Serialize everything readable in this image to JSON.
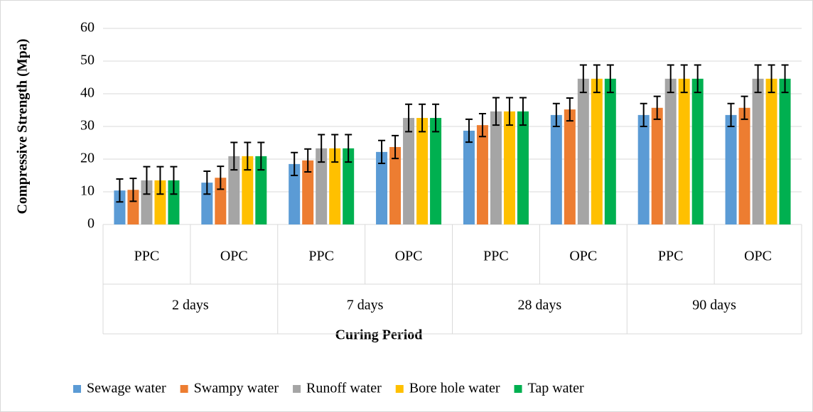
{
  "chart_data": {
    "type": "bar",
    "y_label": "Compressive Strength (Mpa)",
    "x_label": "Curing Period",
    "groups": [
      "2 days",
      "7 days",
      "28 days",
      "90 days"
    ],
    "categories": [
      "PPC",
      "OPC",
      "PPC",
      "OPC",
      "PPC",
      "OPC",
      "PPC",
      "OPC"
    ],
    "series": [
      {
        "name": "Sewage water",
        "color": "#5b9bd5",
        "values": [
          10.4,
          12.8,
          18.5,
          22.2,
          28.7,
          33.5,
          33.5,
          33.5
        ],
        "errors": [
          3.5,
          3.5,
          3.5,
          3.5,
          3.5,
          3.5,
          3.5,
          3.5
        ]
      },
      {
        "name": "Swampy water",
        "color": "#ed7d31",
        "values": [
          10.6,
          14.3,
          19.6,
          23.7,
          30.4,
          35.2,
          35.7,
          35.7
        ],
        "errors": [
          3.5,
          3.5,
          3.5,
          3.5,
          3.5,
          3.5,
          3.5,
          3.5
        ]
      },
      {
        "name": "Runoff water",
        "color": "#a5a5a5",
        "values": [
          13.5,
          20.9,
          23.3,
          32.6,
          34.6,
          44.6,
          44.6,
          44.6
        ],
        "errors": [
          4.2,
          4.2,
          4.2,
          4.2,
          4.2,
          4.2,
          4.2,
          4.2
        ]
      },
      {
        "name": "Bore hole water",
        "color": "#ffc000",
        "values": [
          13.5,
          20.9,
          23.3,
          32.6,
          34.6,
          44.6,
          44.6,
          44.6
        ],
        "errors": [
          4.2,
          4.2,
          4.2,
          4.2,
          4.2,
          4.2,
          4.2,
          4.2
        ]
      },
      {
        "name": "Tap water",
        "color": "#00b050",
        "values": [
          13.5,
          20.9,
          23.3,
          32.6,
          34.6,
          44.6,
          44.6,
          44.6
        ],
        "errors": [
          4.2,
          4.2,
          4.2,
          4.2,
          4.2,
          4.2,
          4.2,
          4.2
        ]
      }
    ],
    "ylim": [
      0,
      60
    ],
    "yticks": [
      0,
      10,
      20,
      30,
      40,
      50,
      60
    ],
    "grid": true,
    "legend": "bottom"
  }
}
